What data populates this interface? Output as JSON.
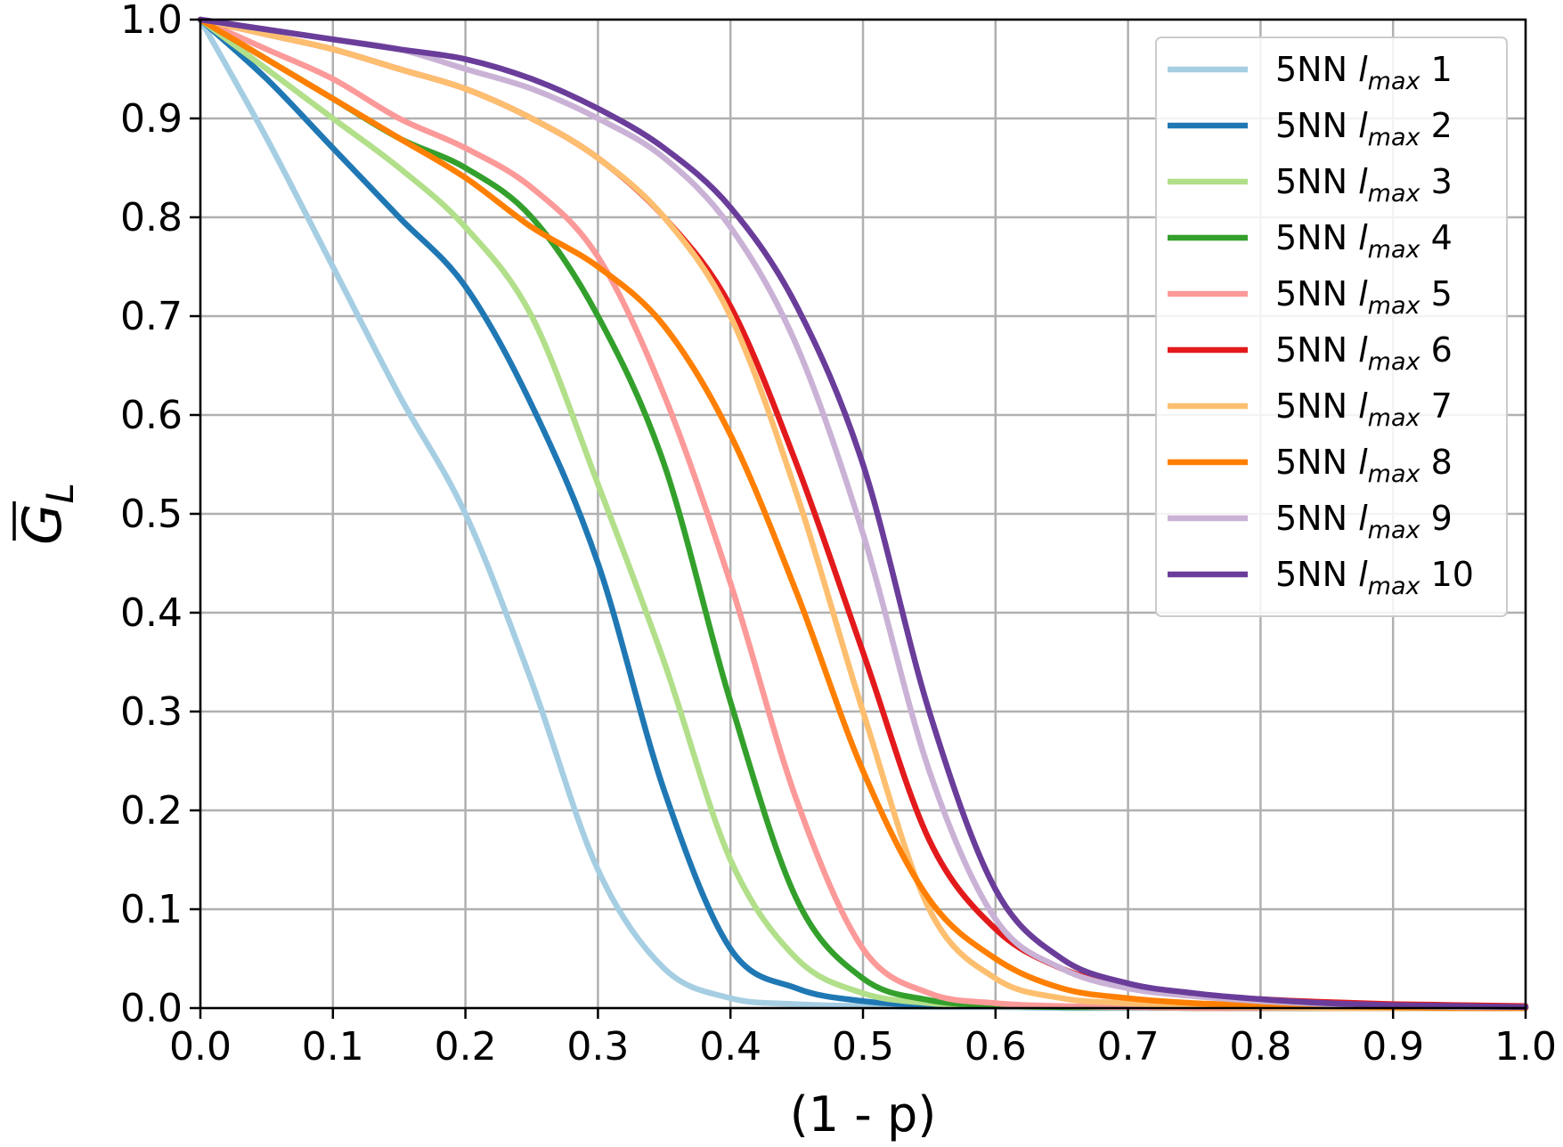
{
  "chart_data": {
    "type": "line",
    "title": "",
    "xlabel": "(1 - p)",
    "ylabel": {
      "main": "G",
      "sub": "L",
      "overline": true
    },
    "xlim": [
      0,
      1
    ],
    "ylim": [
      0,
      1
    ],
    "grid": true,
    "x_ticks": [
      "0.0",
      "0.1",
      "0.2",
      "0.3",
      "0.4",
      "0.5",
      "0.6",
      "0.7",
      "0.8",
      "0.9",
      "1.0"
    ],
    "y_ticks": [
      "0.0",
      "0.1",
      "0.2",
      "0.3",
      "0.4",
      "0.5",
      "0.6",
      "0.7",
      "0.8",
      "0.9",
      "1.0"
    ],
    "legend_position": "top-right",
    "x": [
      0.0,
      0.05,
      0.1,
      0.15,
      0.2,
      0.25,
      0.3,
      0.35,
      0.4,
      0.45,
      0.5,
      0.55,
      0.6,
      0.65,
      0.7,
      0.75,
      0.8,
      0.85,
      0.9,
      0.95,
      1.0
    ],
    "series": [
      {
        "name": "5NN",
        "l_label": "l",
        "l_sub": "max",
        "n": "1",
        "color": "#a6cee3",
        "values": [
          1.0,
          0.88,
          0.75,
          0.62,
          0.5,
          0.33,
          0.14,
          0.04,
          0.01,
          0.004,
          0.002,
          0.001,
          0.001,
          0.0,
          0.0,
          0.0,
          0.0,
          0.0,
          0.0,
          0.0,
          0.0
        ]
      },
      {
        "name": "5NN",
        "l_label": "l",
        "l_sub": "max",
        "n": "2",
        "color": "#1f78b4",
        "values": [
          1.0,
          0.94,
          0.87,
          0.8,
          0.73,
          0.61,
          0.45,
          0.22,
          0.06,
          0.02,
          0.007,
          0.003,
          0.002,
          0.001,
          0.001,
          0.0,
          0.0,
          0.0,
          0.0,
          0.0,
          0.0
        ]
      },
      {
        "name": "5NN",
        "l_label": "l",
        "l_sub": "max",
        "n": "3",
        "color": "#b2df8a",
        "values": [
          1.0,
          0.95,
          0.9,
          0.85,
          0.79,
          0.7,
          0.53,
          0.35,
          0.15,
          0.05,
          0.015,
          0.005,
          0.002,
          0.001,
          0.001,
          0.0,
          0.0,
          0.0,
          0.0,
          0.0,
          0.0
        ]
      },
      {
        "name": "5NN",
        "l_label": "l",
        "l_sub": "max",
        "n": "4",
        "color": "#33a02c",
        "values": [
          1.0,
          0.96,
          0.92,
          0.88,
          0.85,
          0.8,
          0.7,
          0.55,
          0.31,
          0.11,
          0.03,
          0.008,
          0.003,
          0.001,
          0.001,
          0.0,
          0.0,
          0.0,
          0.0,
          0.0,
          0.0
        ]
      },
      {
        "name": "5NN",
        "l_label": "l",
        "l_sub": "max",
        "n": "5",
        "color": "#fb9a99",
        "values": [
          1.0,
          0.97,
          0.94,
          0.9,
          0.87,
          0.83,
          0.76,
          0.62,
          0.43,
          0.21,
          0.06,
          0.015,
          0.005,
          0.002,
          0.001,
          0.0,
          0.0,
          0.0,
          0.0,
          0.0,
          0.0
        ]
      },
      {
        "name": "5NN",
        "l_label": "l",
        "l_sub": "max",
        "n": "6",
        "color": "#e31a1c",
        "values": [
          1.0,
          0.985,
          0.97,
          0.95,
          0.93,
          0.9,
          0.86,
          0.8,
          0.71,
          0.55,
          0.36,
          0.17,
          0.08,
          0.04,
          0.022,
          0.014,
          0.009,
          0.006,
          0.004,
          0.003,
          0.002
        ]
      },
      {
        "name": "5NN",
        "l_label": "l",
        "l_sub": "max",
        "n": "7",
        "color": "#fdbf6f",
        "values": [
          1.0,
          0.985,
          0.97,
          0.95,
          0.93,
          0.9,
          0.86,
          0.8,
          0.7,
          0.52,
          0.3,
          0.1,
          0.03,
          0.01,
          0.005,
          0.002,
          0.001,
          0.0,
          0.0,
          0.0,
          0.0
        ]
      },
      {
        "name": "5NN",
        "l_label": "l",
        "l_sub": "max",
        "n": "8",
        "color": "#ff7f00",
        "values": [
          1.0,
          0.96,
          0.92,
          0.88,
          0.84,
          0.79,
          0.75,
          0.69,
          0.58,
          0.42,
          0.24,
          0.11,
          0.05,
          0.02,
          0.01,
          0.005,
          0.003,
          0.002,
          0.001,
          0.0,
          0.0
        ]
      },
      {
        "name": "5NN",
        "l_label": "l",
        "l_sub": "max",
        "n": "9",
        "color": "#cab2d6",
        "values": [
          1.0,
          0.99,
          0.98,
          0.97,
          0.95,
          0.93,
          0.9,
          0.86,
          0.79,
          0.67,
          0.48,
          0.24,
          0.09,
          0.04,
          0.02,
          0.012,
          0.007,
          0.004,
          0.002,
          0.001,
          0.001
        ]
      },
      {
        "name": "5NN",
        "l_label": "l",
        "l_sub": "max",
        "n": "10",
        "color": "#6a3d9a",
        "values": [
          1.0,
          0.99,
          0.98,
          0.97,
          0.96,
          0.94,
          0.91,
          0.87,
          0.81,
          0.71,
          0.55,
          0.3,
          0.12,
          0.05,
          0.025,
          0.015,
          0.009,
          0.005,
          0.003,
          0.002,
          0.001
        ]
      }
    ]
  }
}
